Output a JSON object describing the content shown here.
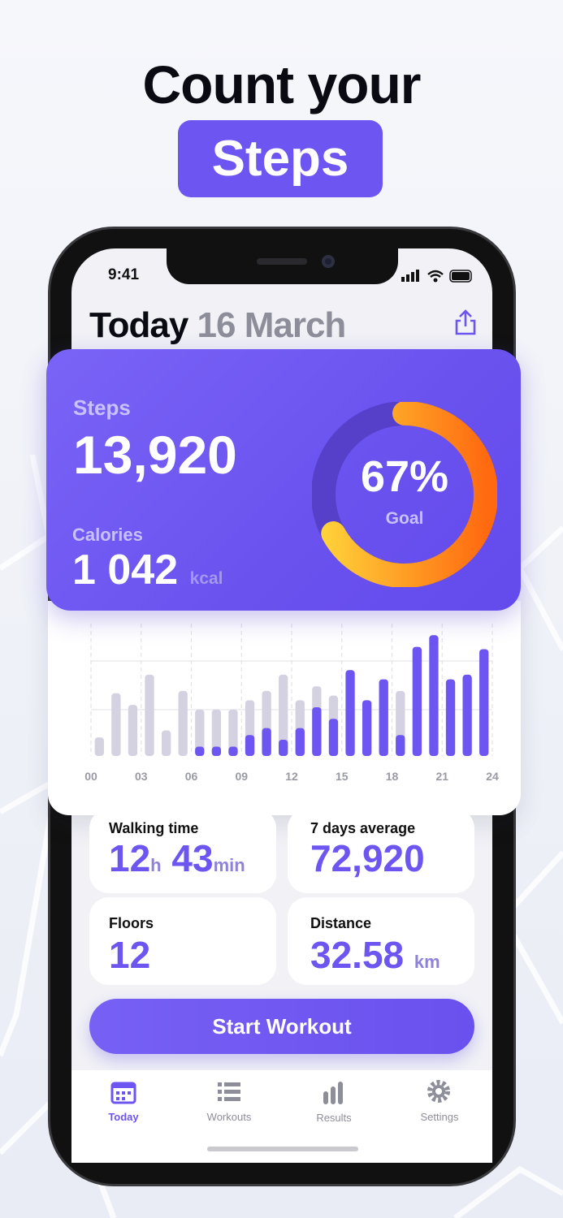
{
  "header": {
    "line1": "Count your",
    "highlight": "Steps"
  },
  "status_bar": {
    "time": "9:41"
  },
  "app_header": {
    "title": "Today",
    "date": "16 March"
  },
  "summary": {
    "steps_label": "Steps",
    "steps": "13,920",
    "calories_label": "Calories",
    "calories": "1 042",
    "calories_unit": "kcal",
    "goal": {
      "value": 67,
      "label": "67%"
    },
    "goal_label": "Goal"
  },
  "chart_data": {
    "type": "bar",
    "x": [
      0,
      1,
      2,
      3,
      4,
      5,
      6,
      7,
      8,
      9,
      10,
      11,
      12,
      13,
      14,
      15,
      16,
      17,
      18,
      19,
      20,
      21,
      22,
      23
    ],
    "xlim": [
      0,
      24
    ],
    "xticks": [
      {
        "value": 0,
        "label": "00"
      },
      {
        "value": 3,
        "label": "03"
      },
      {
        "value": 6,
        "label": "06"
      },
      {
        "value": 9,
        "label": "09"
      },
      12,
      15,
      18,
      21,
      24
    ],
    "ylim": [
      0,
      2850
    ],
    "grid": true,
    "series": [
      {
        "color": "#d4d2e0",
        "values": [
          400,
          1350,
          1100,
          1750,
          550,
          1400,
          1000,
          1000,
          1000,
          1200,
          1400,
          1750,
          1200,
          1500,
          1300,
          null,
          null,
          null,
          1400,
          null,
          null,
          null,
          null,
          null
        ]
      },
      {
        "color": "#6c55f0",
        "values": [
          null,
          null,
          null,
          null,
          null,
          null,
          200,
          200,
          200,
          450,
          600,
          350,
          600,
          1050,
          800,
          1850,
          1200,
          1650,
          450,
          2350,
          2600,
          1650,
          1750,
          2300
        ]
      }
    ]
  },
  "stats": [
    {
      "label": "Walking time",
      "hours": "12",
      "hours_unit": "h",
      "minutes": "43",
      "minutes_unit": "min"
    },
    {
      "label": "7 days average",
      "value": "72,920"
    },
    {
      "label": "Floors",
      "value": "12"
    },
    {
      "label": "Distance",
      "value": "32.58",
      "unit": "km"
    }
  ],
  "button": "Start Workout",
  "tabs": [
    "Today",
    "Workouts",
    "Results",
    "Settings"
  ]
}
